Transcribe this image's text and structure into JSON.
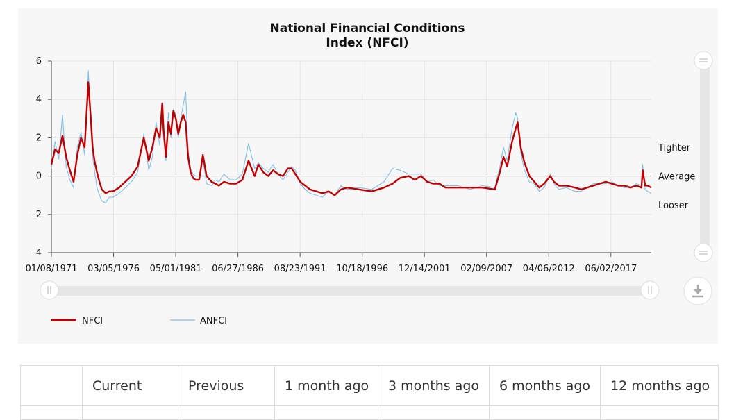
{
  "chart_data": {
    "type": "line",
    "title": "National Financial Conditions Index (NFCI)",
    "title_lines": [
      "National Financial Conditions",
      "Index (NFCI)"
    ],
    "x_ticks": [
      "01/08/1971",
      "03/05/1976",
      "05/01/1981",
      "06/27/1986",
      "08/23/1991",
      "10/18/1996",
      "12/14/2001",
      "02/09/2007",
      "04/06/2012",
      "06/02/2017"
    ],
    "xlim": [
      1971.0,
      2019.7
    ],
    "ylim": [
      -4,
      6
    ],
    "y_ticks": [
      "6",
      "4",
      "2",
      "0",
      "-2",
      "-4"
    ],
    "y_annotations": [
      {
        "label": "Tighter",
        "y": 1.5
      },
      {
        "label": "Average",
        "y": 0
      },
      {
        "label": "Looser",
        "y": -1.5
      }
    ],
    "grid": true,
    "legend_position": "bottom-left",
    "series": [
      {
        "name": "NFCI",
        "color": "#c00000",
        "x": [
          1971.0,
          1971.3,
          1971.6,
          1971.9,
          1972.2,
          1972.5,
          1972.8,
          1973.1,
          1973.4,
          1973.7,
          1974.0,
          1974.2,
          1974.35,
          1974.5,
          1974.7,
          1974.9,
          1975.1,
          1975.4,
          1975.7,
          1976.0,
          1976.5,
          1977.0,
          1977.5,
          1978.0,
          1978.5,
          1978.9,
          1979.2,
          1979.5,
          1979.8,
          1980.0,
          1980.1,
          1980.3,
          1980.5,
          1980.7,
          1980.9,
          1981.1,
          1981.3,
          1981.5,
          1981.7,
          1981.9,
          1982.1,
          1982.3,
          1982.5,
          1982.7,
          1983.0,
          1983.3,
          1983.6,
          1984.0,
          1984.3,
          1984.6,
          1985.0,
          1985.5,
          1986.0,
          1986.5,
          1987.0,
          1987.5,
          1987.8,
          1988.2,
          1988.6,
          1989.0,
          1989.4,
          1989.8,
          1990.2,
          1990.5,
          1990.8,
          1991.2,
          1991.6,
          1992.0,
          1993.0,
          1993.5,
          1994.0,
          1994.5,
          1995.0,
          1996.0,
          1997.0,
          1998.0,
          1998.7,
          1999.3,
          2000.0,
          2000.5,
          2001.0,
          2001.5,
          2002.0,
          2002.5,
          2003.0,
          2004.0,
          2005.0,
          2006.0,
          2007.0,
          2007.4,
          2007.7,
          2008.0,
          2008.4,
          2008.7,
          2008.85,
          2009.1,
          2009.4,
          2009.8,
          2010.2,
          2010.6,
          2011.0,
          2011.5,
          2011.8,
          2012.2,
          2012.8,
          2013.5,
          2014.0,
          2015.0,
          2016.0,
          2016.5,
          2017.0,
          2017.5,
          2018.0,
          2018.5,
          2018.9,
          2019.0,
          2019.2,
          2019.4,
          2019.7
        ],
        "values": [
          0.6,
          1.4,
          1.2,
          2.1,
          1.0,
          0.3,
          -0.3,
          1.1,
          2.0,
          1.5,
          4.9,
          3.0,
          1.5,
          0.8,
          0.2,
          -0.3,
          -0.7,
          -0.9,
          -0.8,
          -0.8,
          -0.6,
          -0.3,
          0.0,
          0.5,
          2.0,
          0.8,
          1.5,
          2.5,
          2.0,
          3.8,
          2.5,
          1.0,
          2.8,
          2.2,
          3.4,
          3.0,
          2.2,
          2.8,
          3.2,
          2.8,
          1.0,
          0.2,
          -0.1,
          -0.2,
          -0.2,
          1.1,
          0.0,
          -0.3,
          -0.4,
          -0.5,
          -0.3,
          -0.4,
          -0.4,
          -0.2,
          0.8,
          0.0,
          0.6,
          0.2,
          0.0,
          0.3,
          0.1,
          0.0,
          0.4,
          0.4,
          0.1,
          -0.3,
          -0.5,
          -0.7,
          -0.9,
          -0.8,
          -1.0,
          -0.7,
          -0.6,
          -0.7,
          -0.8,
          -0.6,
          -0.4,
          -0.1,
          0.0,
          -0.2,
          0.0,
          -0.3,
          -0.4,
          -0.4,
          -0.6,
          -0.6,
          -0.6,
          -0.6,
          -0.7,
          0.2,
          1.0,
          0.5,
          1.8,
          2.5,
          2.8,
          1.5,
          0.7,
          0.0,
          -0.3,
          -0.6,
          -0.4,
          0.0,
          -0.3,
          -0.5,
          -0.5,
          -0.6,
          -0.7,
          -0.5,
          -0.3,
          -0.4,
          -0.5,
          -0.5,
          -0.6,
          -0.5,
          -0.6,
          0.3,
          -0.5,
          -0.5,
          -0.6
        ]
      },
      {
        "name": "ANFCI",
        "color": "#7fbfe8",
        "x": [
          1971.0,
          1971.3,
          1971.6,
          1971.9,
          1972.2,
          1972.5,
          1972.8,
          1973.1,
          1973.4,
          1973.7,
          1974.0,
          1974.2,
          1974.35,
          1974.5,
          1974.7,
          1974.9,
          1975.1,
          1975.4,
          1975.7,
          1976.0,
          1976.5,
          1977.0,
          1977.5,
          1978.0,
          1978.5,
          1978.9,
          1979.2,
          1979.5,
          1979.8,
          1980.0,
          1980.1,
          1980.3,
          1980.5,
          1980.7,
          1980.9,
          1981.1,
          1981.3,
          1981.5,
          1981.7,
          1981.9,
          1982.1,
          1982.3,
          1982.5,
          1982.7,
          1983.0,
          1983.3,
          1983.6,
          1984.0,
          1984.3,
          1984.6,
          1985.0,
          1985.5,
          1986.0,
          1986.5,
          1987.0,
          1987.5,
          1987.8,
          1988.2,
          1988.6,
          1989.0,
          1989.4,
          1989.8,
          1990.2,
          1990.5,
          1990.8,
          1991.2,
          1991.6,
          1992.0,
          1993.0,
          1993.5,
          1994.0,
          1994.5,
          1995.0,
          1996.0,
          1997.0,
          1998.0,
          1998.7,
          1999.3,
          2000.0,
          2000.5,
          2001.0,
          2001.5,
          2002.0,
          2002.5,
          2003.0,
          2004.0,
          2005.0,
          2006.0,
          2007.0,
          2007.4,
          2007.7,
          2008.0,
          2008.4,
          2008.7,
          2008.85,
          2009.1,
          2009.4,
          2009.8,
          2010.2,
          2010.6,
          2011.0,
          2011.5,
          2011.8,
          2012.2,
          2012.8,
          2013.5,
          2014.0,
          2015.0,
          2016.0,
          2016.5,
          2017.0,
          2017.5,
          2018.0,
          2018.5,
          2018.9,
          2019.0,
          2019.2,
          2019.4,
          2019.7
        ],
        "values": [
          0.4,
          1.8,
          0.9,
          3.2,
          0.5,
          -0.2,
          -0.6,
          1.5,
          2.3,
          1.1,
          5.5,
          2.6,
          1.0,
          0.3,
          -0.6,
          -1.0,
          -1.3,
          -1.4,
          -1.1,
          -1.1,
          -0.9,
          -0.6,
          -0.3,
          0.2,
          2.2,
          0.3,
          1.0,
          2.8,
          1.6,
          3.6,
          2.0,
          0.8,
          3.3,
          2.0,
          3.5,
          3.2,
          2.0,
          3.0,
          3.7,
          4.4,
          1.3,
          0.4,
          0.1,
          0.0,
          0.0,
          0.9,
          -0.4,
          -0.5,
          -0.2,
          -0.3,
          0.1,
          -0.2,
          -0.2,
          0.1,
          1.7,
          0.4,
          0.7,
          0.4,
          0.2,
          0.6,
          0.1,
          -0.2,
          0.2,
          0.5,
          0.3,
          -0.4,
          -0.7,
          -0.9,
          -1.1,
          -0.8,
          -1.0,
          -0.5,
          -0.7,
          -0.6,
          -0.7,
          -0.3,
          0.4,
          0.3,
          0.1,
          0.1,
          0.1,
          -0.3,
          -0.2,
          -0.5,
          -0.5,
          -0.5,
          -0.7,
          -0.5,
          -0.6,
          0.5,
          1.5,
          0.8,
          2.5,
          3.3,
          3.0,
          1.2,
          0.3,
          -0.3,
          -0.4,
          -0.8,
          -0.6,
          0.1,
          -0.4,
          -0.7,
          -0.6,
          -0.8,
          -0.8,
          -0.4,
          -0.4,
          -0.3,
          -0.5,
          -0.6,
          -0.6,
          -0.4,
          -0.5,
          0.6,
          -0.7,
          -0.8,
          -0.9
        ]
      }
    ]
  },
  "controls": {
    "download_icon": "download-icon",
    "scroll_handle_icon": "grip-icon"
  },
  "table": {
    "headers": [
      "",
      "Current",
      "Previous",
      "1 month ago",
      "3 months ago",
      "6 months ago",
      "12 months ago"
    ]
  }
}
